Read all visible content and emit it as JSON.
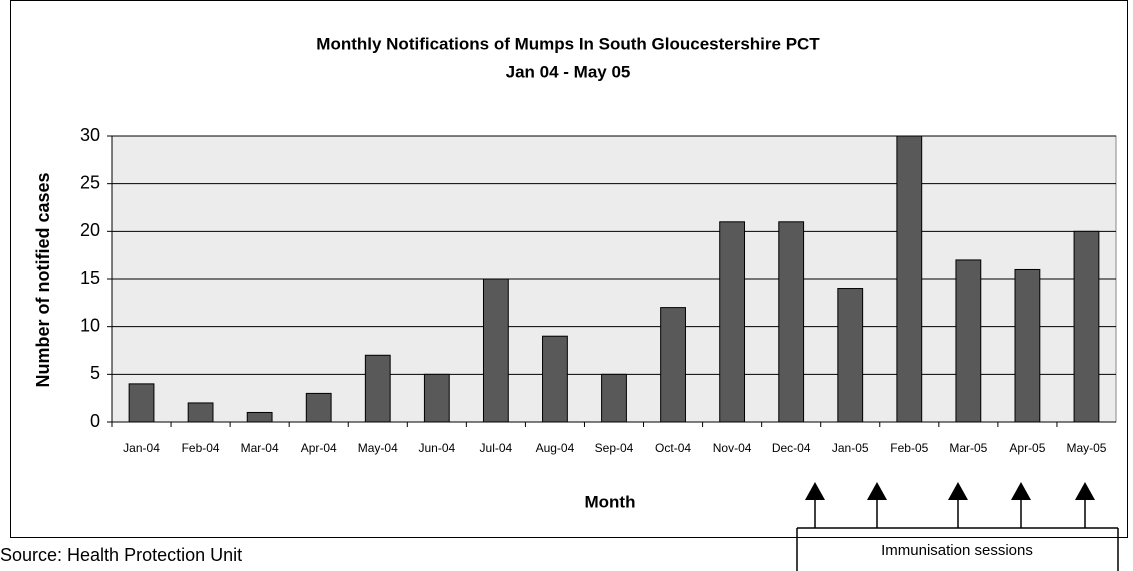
{
  "chart_data": {
    "type": "bar",
    "title": "Monthly Notifications of Mumps In South Gloucestershire PCT",
    "subtitle": "Jan 04 - May 05",
    "x_label": "Month",
    "y_label": "Number of notified cases",
    "categories": [
      "Jan-04",
      "Feb-04",
      "Mar-04",
      "Apr-04",
      "May-04",
      "Jun-04",
      "Jul-04",
      "Aug-04",
      "Sep-04",
      "Oct-04",
      "Nov-04",
      "Dec-04",
      "Jan-05",
      "Feb-05",
      "Mar-05",
      "Apr-05",
      "May-05"
    ],
    "values": [
      4,
      2,
      1,
      3,
      7,
      5,
      15,
      9,
      5,
      12,
      21,
      21,
      14,
      30,
      17,
      16,
      20
    ],
    "color": "#595959",
    "ylim": [
      0,
      30
    ],
    "yticks": [
      0,
      5,
      10,
      15,
      20,
      25,
      30
    ],
    "grid": true,
    "source": "Source: Health Protection Unit",
    "annotation": "Immunisation sessions"
  }
}
